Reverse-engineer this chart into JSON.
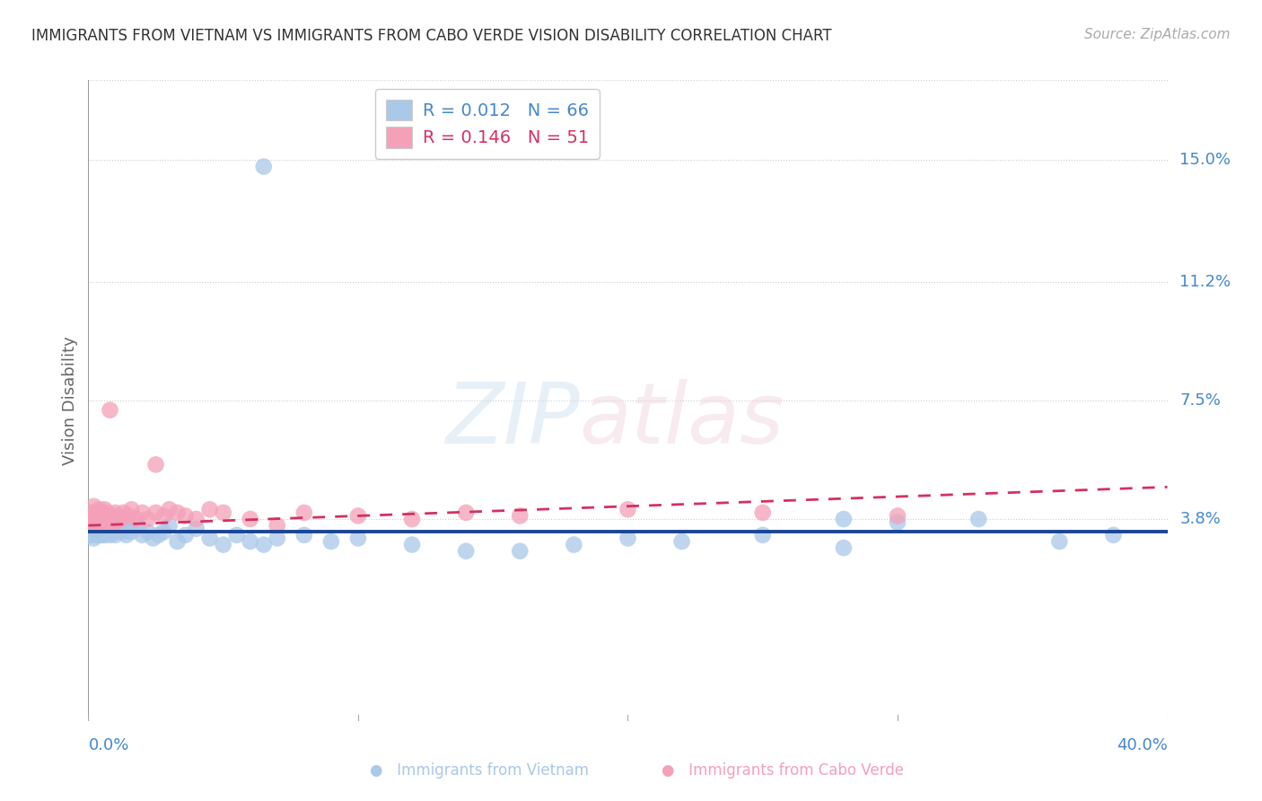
{
  "title": "IMMIGRANTS FROM VIETNAM VS IMMIGRANTS FROM CABO VERDE VISION DISABILITY CORRELATION CHART",
  "source": "Source: ZipAtlas.com",
  "ylabel": "Vision Disability",
  "xlim": [
    0.0,
    0.4
  ],
  "ylim": [
    -0.025,
    0.175
  ],
  "ytick_labels": [
    "15.0%",
    "11.2%",
    "7.5%",
    "3.8%"
  ],
  "ytick_values": [
    0.15,
    0.112,
    0.075,
    0.038
  ],
  "vietnam_color": "#aac8e8",
  "caboverde_color": "#f4a0b8",
  "vietnam_line_color": "#1a4494",
  "caboverde_line_color": "#d43060",
  "axis_label_color": "#4488cc",
  "title_color": "#333333",
  "source_color": "#aaaaaa",
  "grid_color": "#cccccc",
  "legend_label1": "Immigrants from Vietnam",
  "legend_label2": "Immigrants from Cabo Verde",
  "legend_r1": "R = 0.012",
  "legend_n1": "N = 66",
  "legend_r2": "R = 0.146",
  "legend_n2": "N = 51",
  "vietnam_x": [
    0.001,
    0.001,
    0.002,
    0.002,
    0.002,
    0.003,
    0.003,
    0.003,
    0.003,
    0.004,
    0.004,
    0.004,
    0.005,
    0.005,
    0.005,
    0.005,
    0.006,
    0.006,
    0.006,
    0.007,
    0.007,
    0.008,
    0.008,
    0.009,
    0.009,
    0.01,
    0.01,
    0.011,
    0.012,
    0.013,
    0.014,
    0.015,
    0.016,
    0.018,
    0.02,
    0.022,
    0.024,
    0.026,
    0.028,
    0.03,
    0.033,
    0.036,
    0.04,
    0.045,
    0.05,
    0.055,
    0.06,
    0.065,
    0.07,
    0.08,
    0.09,
    0.1,
    0.12,
    0.14,
    0.16,
    0.18,
    0.2,
    0.22,
    0.25,
    0.28,
    0.3,
    0.33,
    0.36,
    0.38,
    0.065,
    0.28
  ],
  "vietnam_y": [
    0.034,
    0.033,
    0.036,
    0.032,
    0.035,
    0.034,
    0.037,
    0.033,
    0.036,
    0.035,
    0.033,
    0.038,
    0.034,
    0.036,
    0.033,
    0.035,
    0.034,
    0.037,
    0.033,
    0.035,
    0.034,
    0.036,
    0.033,
    0.035,
    0.034,
    0.036,
    0.033,
    0.034,
    0.035,
    0.034,
    0.033,
    0.035,
    0.034,
    0.036,
    0.033,
    0.034,
    0.032,
    0.033,
    0.034,
    0.036,
    0.031,
    0.033,
    0.035,
    0.032,
    0.03,
    0.033,
    0.031,
    0.03,
    0.032,
    0.033,
    0.031,
    0.032,
    0.03,
    0.028,
    0.028,
    0.03,
    0.032,
    0.031,
    0.033,
    0.029,
    0.037,
    0.038,
    0.031,
    0.033,
    0.148,
    0.038
  ],
  "caboverde_x": [
    0.001,
    0.001,
    0.002,
    0.002,
    0.002,
    0.003,
    0.003,
    0.003,
    0.004,
    0.004,
    0.004,
    0.005,
    0.005,
    0.005,
    0.006,
    0.006,
    0.007,
    0.007,
    0.008,
    0.008,
    0.009,
    0.01,
    0.01,
    0.011,
    0.012,
    0.013,
    0.015,
    0.016,
    0.018,
    0.02,
    0.022,
    0.025,
    0.028,
    0.03,
    0.033,
    0.036,
    0.04,
    0.045,
    0.05,
    0.06,
    0.07,
    0.08,
    0.1,
    0.12,
    0.14,
    0.16,
    0.2,
    0.25,
    0.3,
    0.008,
    0.025
  ],
  "caboverde_y": [
    0.038,
    0.04,
    0.036,
    0.038,
    0.042,
    0.037,
    0.04,
    0.038,
    0.039,
    0.036,
    0.041,
    0.038,
    0.04,
    0.037,
    0.039,
    0.041,
    0.038,
    0.04,
    0.037,
    0.039,
    0.038,
    0.04,
    0.037,
    0.039,
    0.038,
    0.04,
    0.039,
    0.041,
    0.038,
    0.04,
    0.038,
    0.04,
    0.039,
    0.041,
    0.04,
    0.039,
    0.038,
    0.041,
    0.04,
    0.038,
    0.036,
    0.04,
    0.039,
    0.038,
    0.04,
    0.039,
    0.041,
    0.04,
    0.039,
    0.072,
    0.055
  ]
}
